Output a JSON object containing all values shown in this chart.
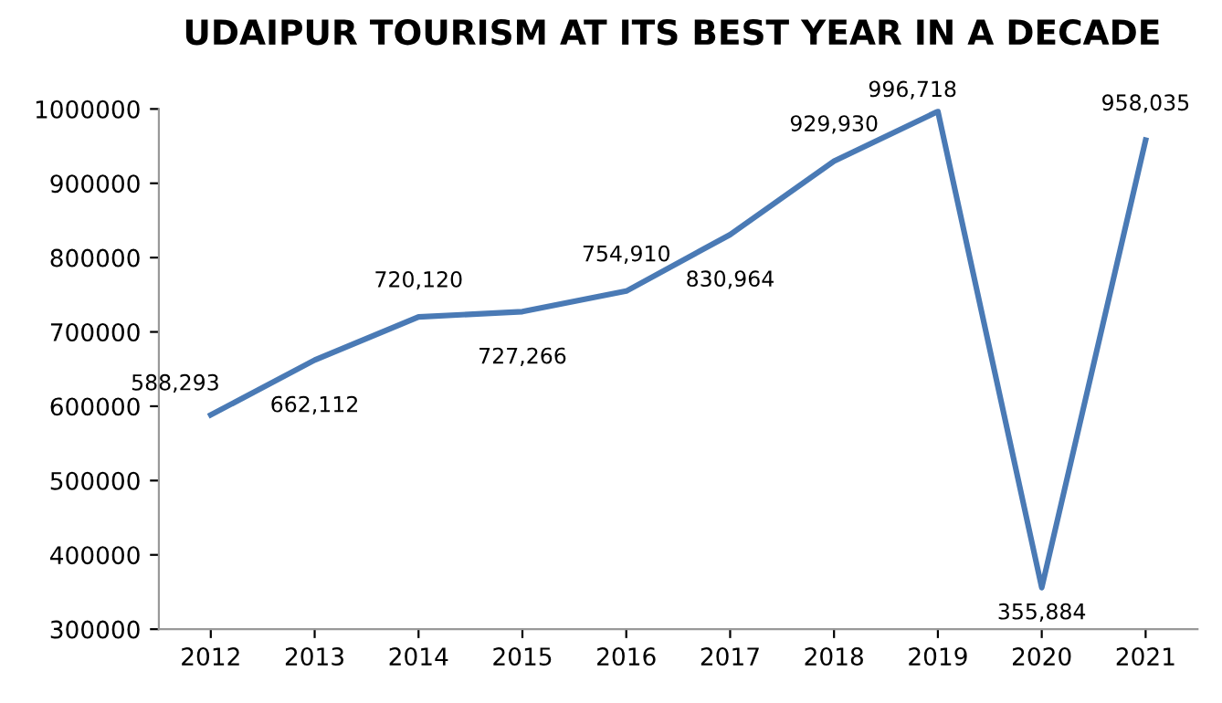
{
  "chart_data": {
    "type": "line",
    "title": "UDAIPUR TOURISM AT ITS BEST YEAR IN A DECADE",
    "categories": [
      "2012",
      "2013",
      "2014",
      "2015",
      "2016",
      "2017",
      "2018",
      "2019",
      "2020",
      "2021"
    ],
    "series": [
      {
        "color": "#4a7ab5",
        "values": [
          588293,
          662112,
          720120,
          727266,
          754910,
          830964,
          929930,
          996718,
          355884,
          958035
        ],
        "value_labels": [
          "588,293",
          "662,112",
          "720,120",
          "727,266",
          "754,910",
          "830,964",
          "929,930",
          "996,718",
          "355,884",
          "958,035"
        ]
      }
    ],
    "ylim": [
      300000,
      1000000
    ],
    "yticks": [
      300000,
      400000,
      500000,
      600000,
      700000,
      800000,
      900000,
      1000000
    ],
    "grid": false,
    "legend": false,
    "marker": "none",
    "line_style": "solid"
  }
}
